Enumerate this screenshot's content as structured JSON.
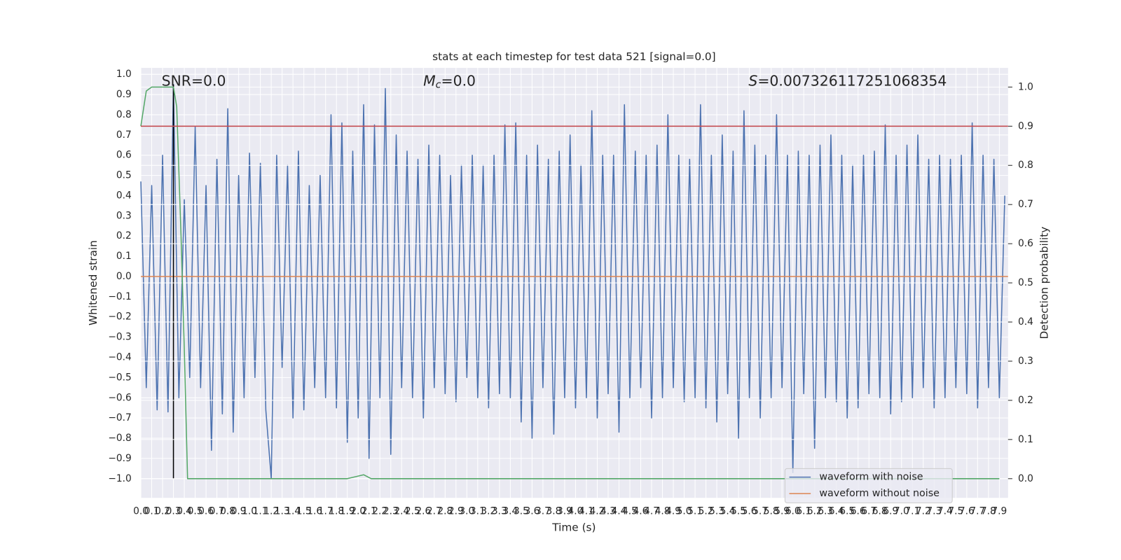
{
  "chart_data": {
    "type": "line",
    "title": "stats at each timestep for test data 521 [signal=0.0]",
    "xlabel": "Time (s)",
    "ylabel": "Whitened strain",
    "y2label": "Detection probability",
    "grid": true,
    "legend": "lower right",
    "xlim": [
      0,
      7.98
    ],
    "ylim": [
      -1.095,
      1.032
    ],
    "y2lim": [
      -0.049,
      1.049
    ],
    "xticks": [
      {
        "value": 0,
        "label": "0.0"
      },
      0.1,
      0.2,
      0.3,
      0.4,
      0.5,
      0.6,
      0.7,
      0.8,
      0.9,
      {
        "value": 1,
        "label": "1.0"
      },
      1.1,
      1.2,
      1.3,
      1.4,
      1.5,
      1.6,
      1.7,
      1.8,
      1.9,
      {
        "value": 2,
        "label": "2.0"
      },
      2.1,
      2.2,
      2.3,
      2.4,
      2.5,
      2.6,
      2.7,
      2.8,
      2.9,
      {
        "value": 3,
        "label": "3.0"
      },
      3.1,
      3.2,
      3.3,
      3.4,
      3.5,
      3.6,
      3.7,
      3.8,
      3.9,
      {
        "value": 4,
        "label": "4.0"
      },
      4.1,
      4.2,
      4.3,
      4.4,
      4.5,
      4.6,
      4.7,
      4.8,
      4.9,
      {
        "value": 5,
        "label": "5.0"
      },
      5.1,
      5.2,
      5.3,
      5.4,
      5.5,
      5.6,
      5.7,
      5.8,
      5.9,
      {
        "value": 6,
        "label": "6.0"
      },
      6.1,
      6.2,
      6.3,
      6.4,
      6.5,
      6.6,
      6.7,
      6.8,
      6.9,
      {
        "value": 7,
        "label": "7.0"
      },
      7.1,
      7.2,
      7.3,
      7.4,
      7.5,
      7.6,
      7.7,
      7.8,
      7.9
    ],
    "yticks": [
      {
        "value": -1,
        "label": "−1.0"
      },
      {
        "value": -0.9,
        "label": "−0.9"
      },
      {
        "value": -0.8,
        "label": "−0.8"
      },
      {
        "value": -0.7,
        "label": "−0.7"
      },
      {
        "value": -0.6,
        "label": "−0.6"
      },
      {
        "value": -0.5,
        "label": "−0.5"
      },
      {
        "value": -0.4,
        "label": "−0.4"
      },
      {
        "value": -0.3,
        "label": "−0.3"
      },
      {
        "value": -0.2,
        "label": "−0.2"
      },
      {
        "value": -0.1,
        "label": "−0.1"
      },
      {
        "value": 0,
        "label": "0.0"
      },
      0.1,
      0.2,
      0.3,
      0.4,
      0.5,
      0.6,
      0.7,
      0.8,
      0.9,
      {
        "value": 1,
        "label": "1.0"
      }
    ],
    "y2ticks": [
      {
        "value": 0,
        "label": "0.0"
      },
      0.1,
      0.2,
      0.3,
      0.4,
      0.5,
      0.6,
      0.7,
      0.8,
      0.9,
      {
        "value": 1,
        "label": "1.0"
      }
    ],
    "series": [
      {
        "name": "waveform with noise",
        "color": "#4c72b0",
        "x": [
          0,
          0.05,
          0.1,
          0.15,
          0.2,
          0.25,
          0.3,
          0.35,
          0.4,
          0.45,
          0.5,
          0.55,
          0.6,
          0.65,
          0.7,
          0.75,
          0.8,
          0.85,
          0.9,
          0.95,
          1,
          1.05,
          1.1,
          1.15,
          1.2,
          1.25,
          1.3,
          1.35,
          1.4,
          1.45,
          1.5,
          1.55,
          1.6,
          1.65,
          1.7,
          1.75,
          1.8,
          1.85,
          1.9,
          1.95,
          2,
          2.05,
          2.1,
          2.15,
          2.2,
          2.25,
          2.3,
          2.35,
          2.4,
          2.45,
          2.5,
          2.55,
          2.6,
          2.65,
          2.7,
          2.75,
          2.8,
          2.85,
          2.9,
          2.95,
          3,
          3.05,
          3.1,
          3.15,
          3.2,
          3.25,
          3.3,
          3.35,
          3.4,
          3.45,
          3.5,
          3.55,
          3.6,
          3.65,
          3.7,
          3.75,
          3.8,
          3.85,
          3.9,
          3.95,
          4,
          4.05,
          4.1,
          4.15,
          4.2,
          4.25,
          4.3,
          4.35,
          4.4,
          4.45,
          4.5,
          4.55,
          4.6,
          4.65,
          4.7,
          4.75,
          4.8,
          4.85,
          4.9,
          4.95,
          5,
          5.05,
          5.1,
          5.15,
          5.2,
          5.25,
          5.3,
          5.35,
          5.4,
          5.45,
          5.5,
          5.55,
          5.6,
          5.65,
          5.7,
          5.75,
          5.8,
          5.85,
          5.9,
          5.95,
          6,
          6.05,
          6.1,
          6.15,
          6.2,
          6.25,
          6.3,
          6.35,
          6.4,
          6.45,
          6.5,
          6.55,
          6.6,
          6.65,
          6.7,
          6.75,
          6.8,
          6.85,
          6.9,
          6.95,
          7,
          7.05,
          7.1,
          7.15,
          7.2,
          7.25,
          7.3,
          7.35,
          7.4,
          7.45,
          7.5,
          7.55,
          7.6,
          7.65,
          7.7,
          7.75,
          7.8,
          7.85,
          7.9,
          7.95
        ],
        "values": [
          0.47,
          -0.55,
          0.45,
          -0.66,
          0.6,
          -0.67,
          0.95,
          -0.6,
          0.38,
          -0.5,
          0.74,
          -0.55,
          0.45,
          -0.86,
          0.58,
          -0.68,
          0.83,
          -0.77,
          0.5,
          -0.6,
          0.61,
          -0.5,
          0.56,
          -0.66,
          -1.0,
          0.6,
          -0.45,
          0.55,
          -0.7,
          0.62,
          -0.66,
          0.45,
          -0.55,
          0.5,
          -0.6,
          0.8,
          -0.65,
          0.76,
          -0.82,
          0.62,
          -0.7,
          0.85,
          -0.9,
          0.75,
          -0.6,
          0.93,
          -0.88,
          0.7,
          -0.55,
          0.62,
          -0.6,
          0.58,
          -0.7,
          0.65,
          -0.55,
          0.6,
          -0.58,
          0.5,
          -0.62,
          0.55,
          -0.5,
          0.6,
          -0.6,
          0.55,
          -0.65,
          0.6,
          -0.58,
          0.75,
          -0.6,
          0.76,
          -0.72,
          0.6,
          -0.8,
          0.65,
          -0.55,
          0.58,
          -0.78,
          0.62,
          -0.6,
          0.7,
          -0.65,
          0.55,
          -0.6,
          0.82,
          -0.7,
          0.6,
          -0.58,
          0.6,
          -0.77,
          0.85,
          -0.6,
          0.62,
          -0.55,
          0.6,
          -0.7,
          0.65,
          -0.6,
          0.8,
          -0.55,
          0.6,
          -0.62,
          0.58,
          -0.6,
          0.85,
          -0.65,
          0.6,
          -0.72,
          0.7,
          -0.58,
          0.62,
          -0.8,
          0.82,
          -0.6,
          0.65,
          -0.7,
          0.6,
          -0.6,
          0.8,
          -0.55,
          0.6,
          -0.97,
          0.62,
          -0.58,
          0.6,
          -0.85,
          0.65,
          -0.6,
          0.7,
          -0.62,
          0.6,
          -0.7,
          0.55,
          -0.65,
          0.6,
          -0.58,
          0.62,
          -0.6,
          0.75,
          -0.68,
          0.6,
          -0.62,
          0.65,
          -0.6,
          0.7,
          -0.55,
          0.58,
          -0.65,
          0.6,
          -0.6,
          0.58,
          -0.55,
          0.6,
          -0.58,
          0.76,
          -0.65,
          0.6,
          -0.55,
          0.58,
          -0.6,
          0.4
        ]
      },
      {
        "name": "waveform without noise",
        "color": "#dd8452",
        "x": [
          0,
          7.98
        ],
        "values": [
          0,
          0
        ]
      },
      {
        "color": "#55a868",
        "axis": "y2",
        "x": [
          0,
          0.05,
          0.1,
          0.3,
          0.33,
          0.37,
          0.4,
          0.43,
          0.5,
          1.0,
          1.9,
          2.05,
          2.12,
          7.9
        ],
        "values": [
          0.9,
          0.99,
          1.0,
          1.0,
          0.95,
          0.62,
          0.33,
          0.0,
          0.0,
          0.0,
          0.0,
          0.01,
          0.0,
          0.0
        ]
      }
    ],
    "hlines": [
      {
        "value": 0.9,
        "axis": "y2",
        "color": "#c44e52"
      }
    ],
    "vlines": [
      {
        "x": 0.3,
        "ymin": -1.0,
        "ymax": 0.95,
        "color": "#000000"
      }
    ],
    "annotations": [
      {
        "text": "SNR=0.0"
      },
      {
        "symbol": "M",
        "subscript": "c",
        "text": "=0.0"
      },
      {
        "symbol": "S",
        "text": "=0.007326117251068354"
      }
    ]
  }
}
